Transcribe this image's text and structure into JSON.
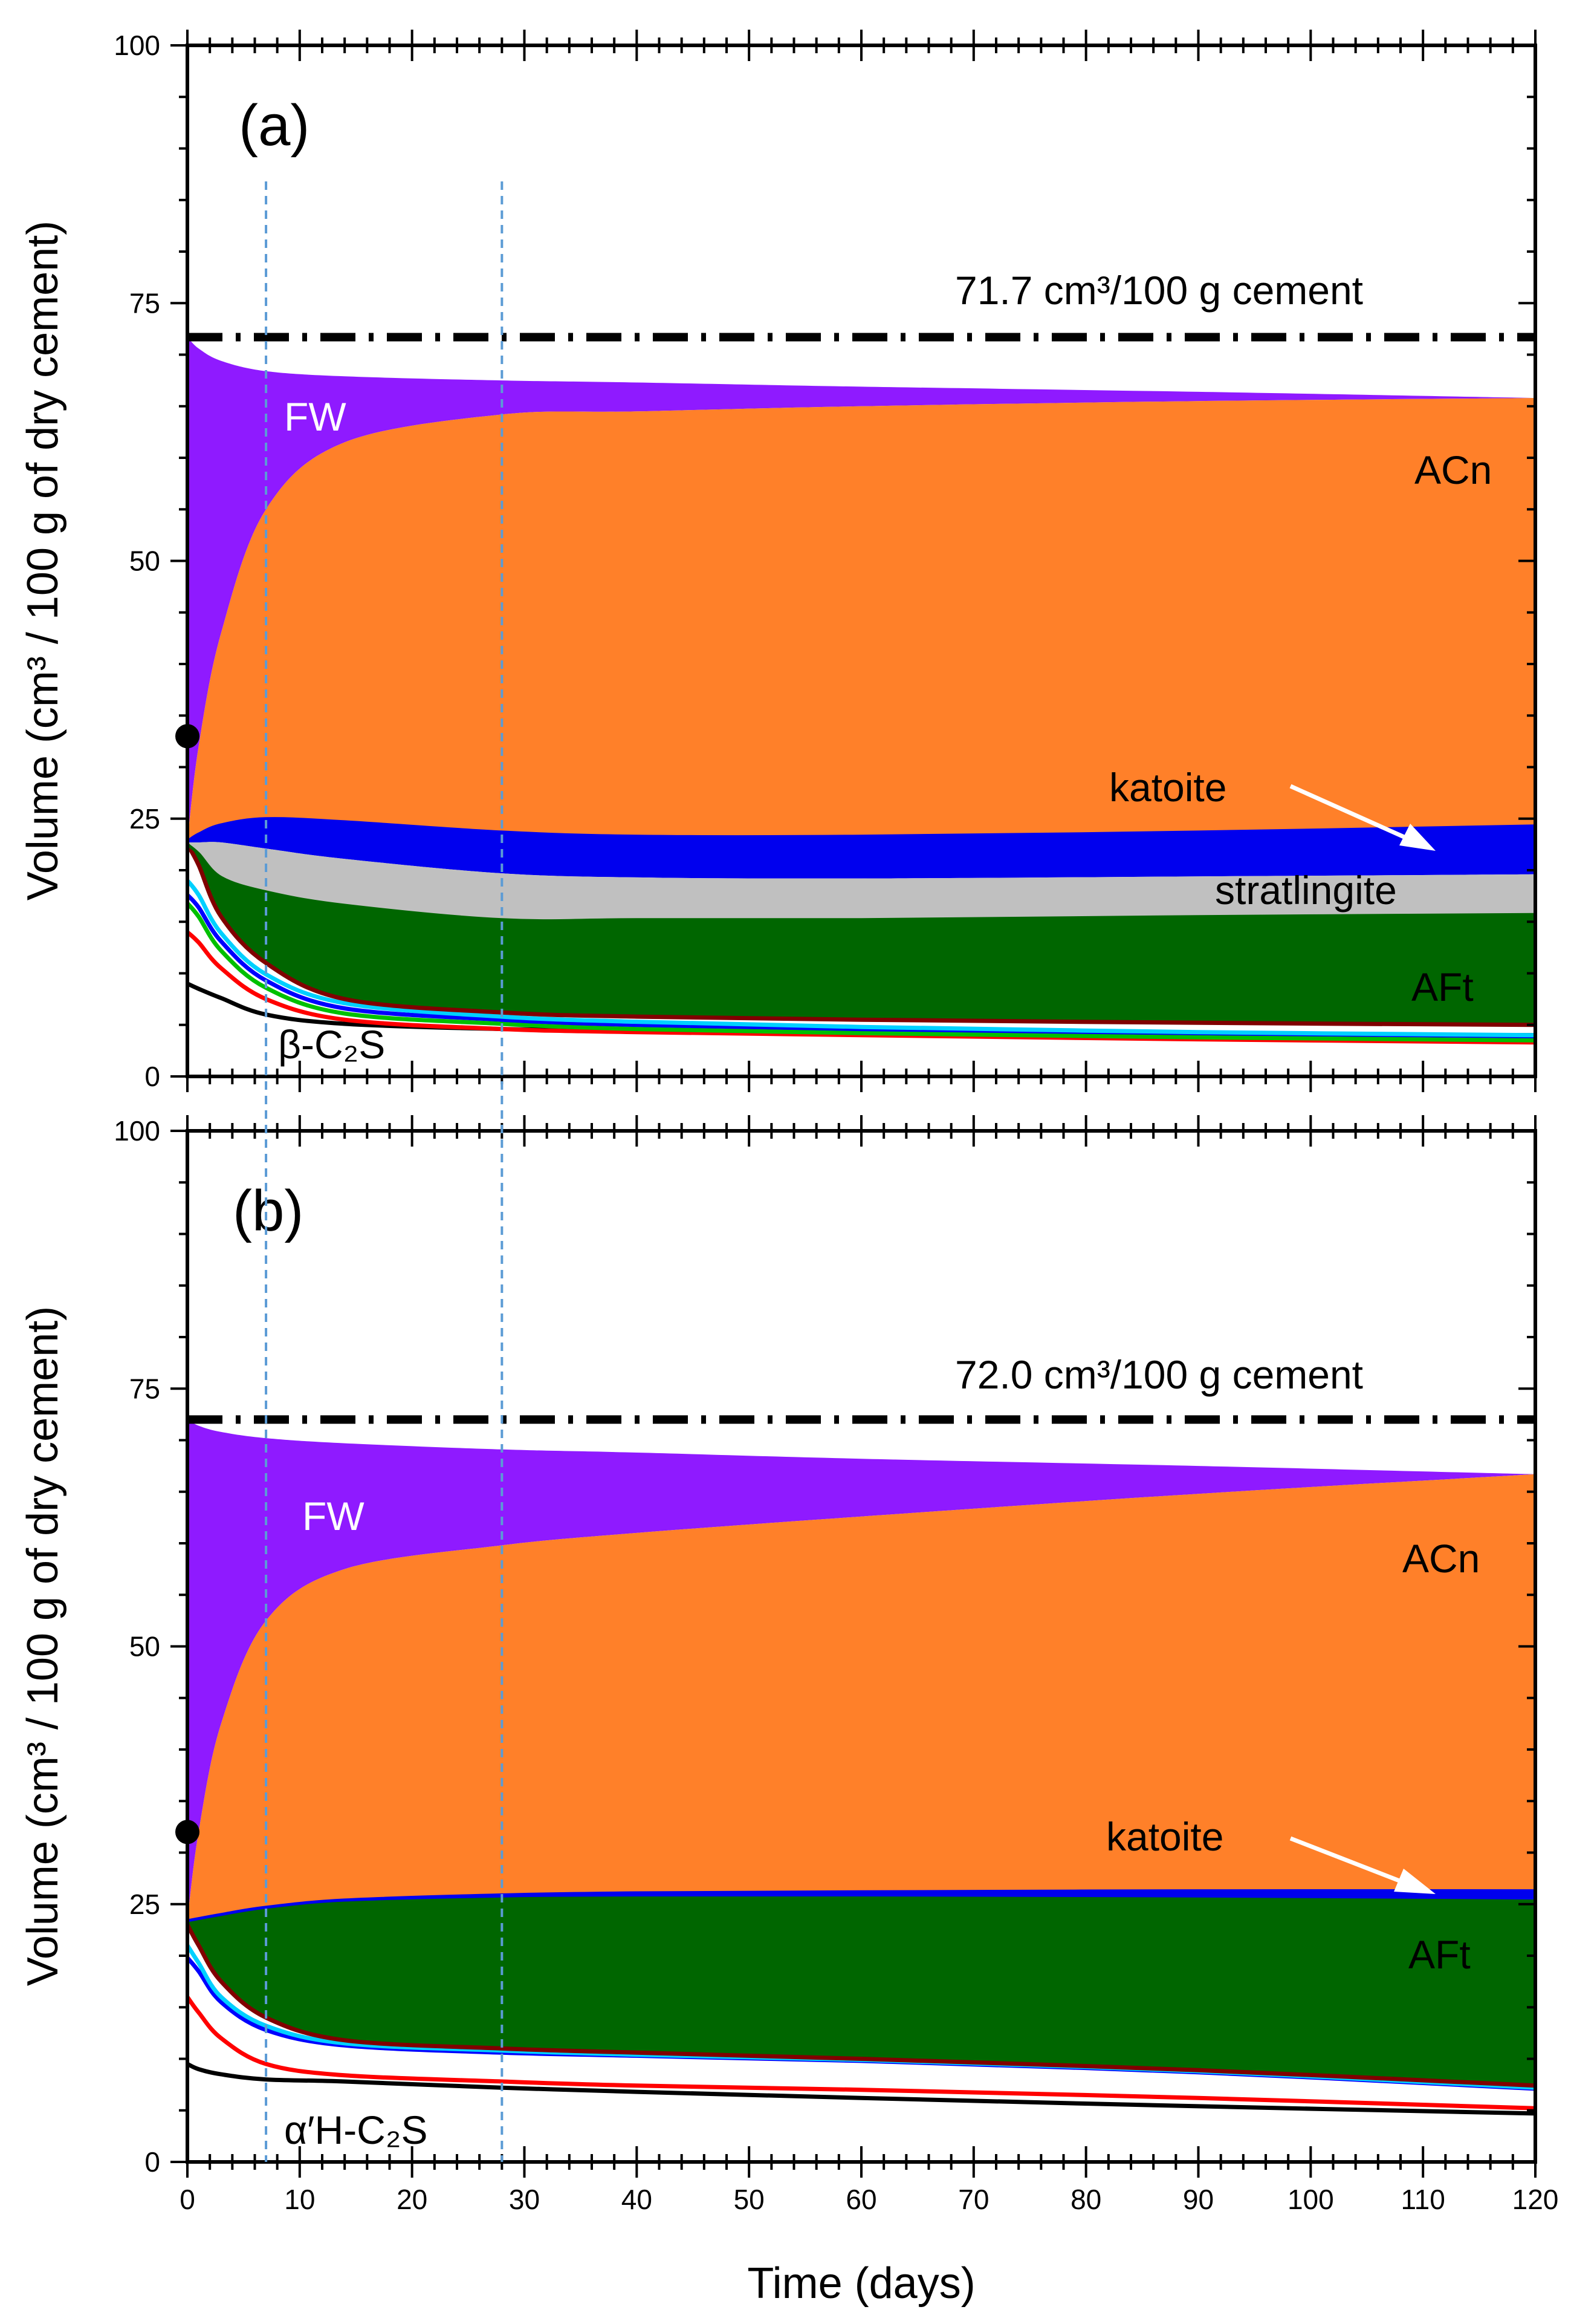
{
  "chart_data": {
    "type": "area",
    "xlabel": "Time (days)",
    "ylabel": "Volume (cm³ / 100 g of dry cement)",
    "x_ticks": [
      0,
      10,
      20,
      30,
      40,
      50,
      60,
      70,
      80,
      90,
      100,
      110,
      120
    ],
    "y_ticks": [
      0,
      25,
      50,
      75,
      100
    ],
    "xlim": [
      0,
      120
    ],
    "ylim": [
      0,
      100
    ],
    "vlines": [
      7,
      28
    ],
    "x": [
      0,
      1,
      3,
      7,
      14,
      28,
      40,
      60,
      90,
      120
    ],
    "panels": [
      {
        "panel_label": "(a)",
        "reference_value": 71.7,
        "reference_label": "71.7 cm³/100 g cement",
        "initial_point": 33,
        "labels": {
          "fw": "FW",
          "acn": "ACn",
          "katoite": "katoite",
          "stratlingite": "stratlingite",
          "aft": "AFt",
          "c2s": "β-C₂S"
        },
        "boundaries": [
          {
            "name": "black",
            "color": "#000000",
            "values": [
              9.0,
              8.5,
              7.6,
              6.0,
              5.1,
              4.6,
              4.5,
              4.3,
              4.1,
              4.0
            ]
          },
          {
            "name": "red",
            "color": "#ff0000",
            "values": [
              14.0,
              13.0,
              10.5,
              7.5,
              5.5,
              4.6,
              4.3,
              4.0,
              3.6,
              3.3
            ]
          },
          {
            "name": "green",
            "color": "#00c000",
            "values": [
              16.8,
              15.5,
              12.2,
              8.6,
              6.1,
              5.1,
              4.6,
              4.2,
              3.8,
              3.5
            ]
          },
          {
            "name": "blue",
            "color": "#0000ff",
            "values": [
              17.6,
              16.4,
              13.1,
              9.3,
              6.6,
              5.5,
              5.0,
              4.6,
              4.2,
              3.9
            ]
          },
          {
            "name": "cyan",
            "color": "#00d0ff",
            "values": [
              19.0,
              17.6,
              13.9,
              9.9,
              7.1,
              5.8,
              5.3,
              4.8,
              4.3,
              4.0
            ]
          },
          {
            "name": "darkred",
            "color": "#800000",
            "values": [
              22.5,
              20.5,
              15.5,
              11.0,
              7.5,
              6.2,
              5.8,
              5.5,
              5.2,
              5.0
            ]
          },
          {
            "name": "aft",
            "color": "#006600",
            "values": [
              22.5,
              21.6,
              19.3,
              17.9,
              16.6,
              15.2,
              15.2,
              15.2,
              15.5,
              15.7
            ]
          },
          {
            "name": "strat",
            "color": "#c0c0c0",
            "values": [
              22.7,
              22.7,
              22.7,
              22.1,
              21.1,
              19.7,
              19.3,
              19.2,
              19.4,
              19.6
            ]
          },
          {
            "name": "katoite",
            "color": "#0000ee",
            "values": [
              22.8,
              23.5,
              24.4,
              25.0,
              24.7,
              23.7,
              23.3,
              23.3,
              23.7,
              24.3
            ]
          },
          {
            "name": "acn",
            "color": "#ff8029",
            "values": [
              22.8,
              32.0,
              43.0,
              55.0,
              61.5,
              64.2,
              64.5,
              65.0,
              65.5,
              65.8
            ]
          },
          {
            "name": "fw",
            "color": "#8f1aff",
            "values": [
              71.7,
              70.6,
              69.4,
              68.4,
              67.9,
              67.5,
              67.3,
              66.9,
              66.4,
              65.8
            ]
          }
        ]
      },
      {
        "panel_label": "(b)",
        "reference_value": 72.0,
        "reference_label": "72.0 cm³/100 g cement",
        "initial_point": 32,
        "labels": {
          "fw": "FW",
          "acn": "ACn",
          "katoite": "katoite",
          "aft": "AFt",
          "c2s": "α′H-C₂S"
        },
        "boundaries": [
          {
            "name": "black",
            "color": "#000000",
            "values": [
              9.5,
              9.0,
              8.5,
              8.0,
              7.8,
              7.2,
              6.8,
              6.2,
              5.4,
              4.7
            ]
          },
          {
            "name": "red",
            "color": "#ff0000",
            "values": [
              16.0,
              14.5,
              12.0,
              9.5,
              8.4,
              7.8,
              7.4,
              7.0,
              6.2,
              5.2
            ]
          },
          {
            "name": "blue",
            "color": "#0000ff",
            "values": [
              19.8,
              18.5,
              15.5,
              12.8,
              11.3,
              10.6,
              10.3,
              9.8,
              8.7,
              7.1
            ]
          },
          {
            "name": "cyan",
            "color": "#00d0ff",
            "values": [
              21.0,
              19.3,
              16.0,
              13.2,
              11.5,
              10.8,
              10.4,
              9.9,
              8.8,
              7.2
            ]
          },
          {
            "name": "darkred",
            "color": "#800000",
            "values": [
              23.0,
              21.0,
              17.5,
              14.0,
              11.8,
              11.0,
              10.6,
              10.0,
              8.9,
              7.4
            ]
          },
          {
            "name": "aft",
            "color": "#006600",
            "values": [
              23.3,
              23.5,
              23.9,
              24.5,
              25.1,
              25.5,
              25.6,
              25.6,
              25.5,
              25.3
            ]
          },
          {
            "name": "katoite",
            "color": "#0000ee",
            "values": [
              23.4,
              23.6,
              24.0,
              24.7,
              25.4,
              25.9,
              26.1,
              26.2,
              26.3,
              26.3
            ]
          },
          {
            "name": "acn",
            "color": "#ff8029",
            "values": [
              23.4,
              32.0,
              42.5,
              52.5,
              57.5,
              59.8,
              61.0,
              62.6,
              64.8,
              66.7
            ]
          },
          {
            "name": "fw",
            "color": "#8f1aff",
            "values": [
              72.0,
              71.4,
              70.8,
              70.2,
              69.7,
              69.1,
              68.8,
              68.2,
              67.5,
              66.7
            ]
          }
        ]
      }
    ]
  }
}
